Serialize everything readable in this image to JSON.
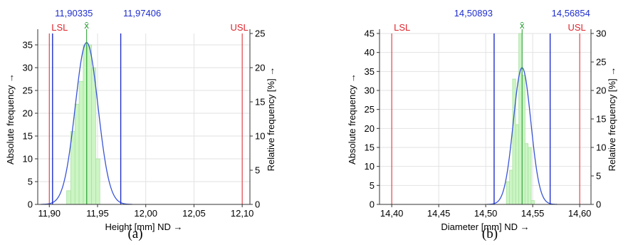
{
  "chart_data": [
    {
      "type": "bar",
      "panel_label": "(a)",
      "xlabel": "Height [mm]  ND →",
      "ylabel": "Absolute frequency →",
      "y2label": "Relative frequency  [%] →",
      "xlim": [
        11.888,
        12.108
      ],
      "ylim": [
        0,
        37.5
      ],
      "y2lim": [
        0,
        25
      ],
      "xticks": [
        11.9,
        11.95,
        12.0,
        12.05,
        12.1
      ],
      "xtick_labels": [
        "11,90",
        "11,95",
        "12,00",
        "12,05",
        "12,10"
      ],
      "yticks": [
        0,
        5,
        10,
        15,
        20,
        25,
        30,
        35
      ],
      "y2ticks": [
        0,
        5,
        10,
        15,
        20,
        25
      ],
      "grid": true,
      "bin_edges": [
        11.918,
        11.9223,
        11.9266,
        11.9309,
        11.9352,
        11.9395,
        11.9438,
        11.9481,
        11.9524
      ],
      "values": [
        3,
        16,
        22,
        27,
        35,
        35,
        30,
        10,
        5
      ],
      "normal_fit": {
        "mean": 11.9387,
        "sigma": 0.0118,
        "peak": 35.5
      },
      "lines": [
        {
          "label": "LSL",
          "x": 11.9,
          "color": "#e0262d",
          "text_color": "#e0262d"
        },
        {
          "label": "USL",
          "x": 12.1,
          "color": "#e0262d",
          "text_color": "#e0262d"
        },
        {
          "label": "11,90335",
          "x": 11.90335,
          "color": "#1f2ecc",
          "text_color": "#1f2ecc"
        },
        {
          "label": "11,97406",
          "x": 11.97406,
          "color": "#1f2ecc",
          "text_color": "#1f2ecc"
        },
        {
          "label": "x̄",
          "x": 11.9387,
          "color": "#1f9a2a",
          "text_color": "#1f9a2a"
        }
      ]
    },
    {
      "type": "bar",
      "panel_label": "(b)",
      "xlabel": "Diameter [mm]  ND →",
      "ylabel": "Absolute frequency →",
      "y2label": "Relative frequency  [%] →",
      "xlim": [
        14.387,
        14.612
      ],
      "ylim": [
        0,
        45
      ],
      "y2lim": [
        0,
        30
      ],
      "xticks": [
        14.4,
        14.45,
        14.5,
        14.55,
        14.6
      ],
      "xtick_labels": [
        "14,40",
        "14,45",
        "14,50",
        "14,55",
        "14,60"
      ],
      "yticks": [
        0,
        5,
        10,
        15,
        20,
        25,
        30,
        35,
        40,
        45
      ],
      "y2ticks": [
        0,
        5,
        10,
        15,
        20,
        25,
        30
      ],
      "grid": true,
      "bin_edges": [
        14.522,
        14.5253,
        14.5286,
        14.5319,
        14.5352,
        14.5385,
        14.5418,
        14.5451,
        14.5484,
        14.5517
      ],
      "values": [
        6,
        9,
        33,
        21,
        45,
        34,
        16,
        15,
        1
      ],
      "normal_fit": {
        "mean": 14.5387,
        "sigma": 0.0093,
        "peak": 36
      },
      "lines": [
        {
          "label": "LSL",
          "x": 14.4,
          "color": "#e0262d",
          "text_color": "#e0262d"
        },
        {
          "label": "USL",
          "x": 14.6,
          "color": "#e0262d",
          "text_color": "#e0262d"
        },
        {
          "label": "14,50893",
          "x": 14.50893,
          "color": "#1f2ecc",
          "text_color": "#1f2ecc"
        },
        {
          "label": "14,56854",
          "x": 14.56854,
          "color": "#1f2ecc",
          "text_color": "#1f2ecc"
        },
        {
          "label": "x̄",
          "x": 14.5387,
          "color": "#1f9a2a",
          "text_color": "#1f9a2a"
        }
      ]
    }
  ],
  "colors": {
    "bar_fill": "#ccf5c4",
    "bar_stroke": "#a8e2a0",
    "curve": "#3a55d6",
    "axis": "#333333",
    "grid": "#e2e2e2"
  }
}
